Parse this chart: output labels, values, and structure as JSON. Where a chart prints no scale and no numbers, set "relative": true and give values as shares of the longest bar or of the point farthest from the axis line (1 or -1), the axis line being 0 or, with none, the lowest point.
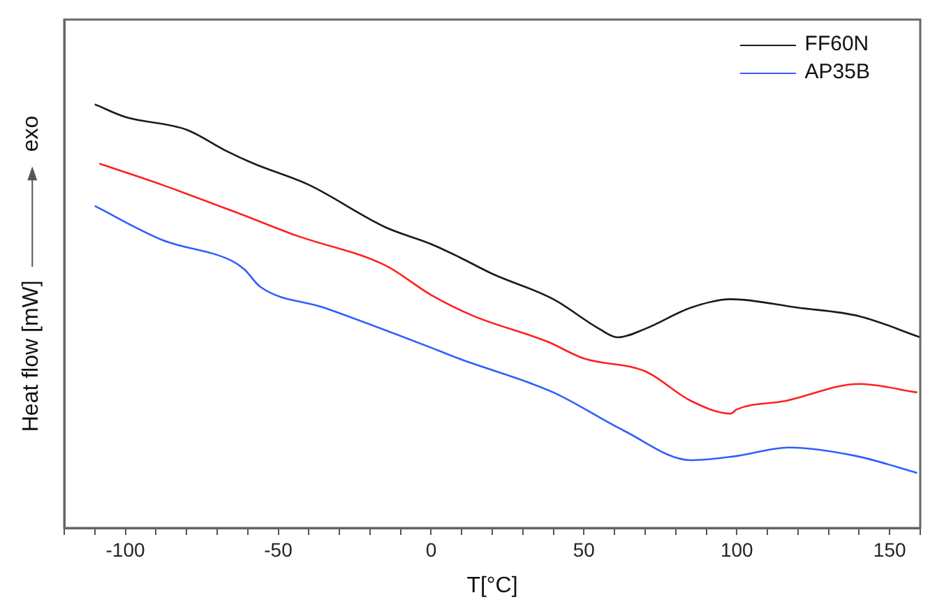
{
  "chart_data": {
    "type": "line",
    "xlabel": "T[°C]",
    "ylabel": "Heat flow [mW]",
    "annotations": [
      "exo"
    ],
    "relative": true,
    "xlim": [
      -120,
      160
    ],
    "xticks": [
      {
        "value": -120,
        "label": null
      },
      {
        "value": -110,
        "label": null
      },
      -100,
      {
        "value": -90,
        "label": null
      },
      {
        "value": -80,
        "label": null
      },
      {
        "value": -70,
        "label": null
      },
      {
        "value": -60,
        "label": null
      },
      -50,
      {
        "value": -40,
        "label": null
      },
      {
        "value": -30,
        "label": null
      },
      {
        "value": -20,
        "label": null
      },
      {
        "value": -10,
        "label": null
      },
      0,
      {
        "value": 10,
        "label": null
      },
      {
        "value": 20,
        "label": null
      },
      {
        "value": 30,
        "label": null
      },
      {
        "value": 40,
        "label": null
      },
      50,
      {
        "value": 60,
        "label": null
      },
      {
        "value": 70,
        "label": null
      },
      {
        "value": 80,
        "label": null
      },
      {
        "value": 90,
        "label": null
      },
      100,
      {
        "value": 110,
        "label": null
      },
      {
        "value": 120,
        "label": null
      },
      {
        "value": 130,
        "label": null
      },
      {
        "value": 140,
        "label": null
      },
      150,
      {
        "value": 160,
        "label": null
      }
    ],
    "grid": false,
    "legend": "top right",
    "marker": "none",
    "line_style": "solid",
    "series": [
      {
        "name": "FF60N",
        "color": "#1a1a1a",
        "x": [
          -110,
          -100,
          -80,
          -67,
          -58,
          -40,
          -15,
          0,
          9,
          20,
          40,
          55,
          61,
          70,
          85,
          98,
          120,
          140,
          160
        ],
        "values": [
          1.0,
          0.97,
          0.94,
          0.89,
          0.86,
          0.81,
          0.71,
          0.67,
          0.64,
          0.6,
          0.54,
          0.47,
          0.45,
          0.47,
          0.52,
          0.54,
          0.52,
          0.5,
          0.45
        ]
      },
      {
        "color": "#ff2020",
        "x": [
          -108.5,
          -88,
          -62,
          -44,
          -15,
          0,
          14,
          38,
          50,
          70,
          85,
          98,
          100,
          116,
          140,
          159
        ],
        "values": [
          0.86,
          0.81,
          0.74,
          0.69,
          0.62,
          0.55,
          0.5,
          0.44,
          0.4,
          0.37,
          0.3,
          0.27,
          0.28,
          0.3,
          0.34,
          0.32
        ]
      },
      {
        "name": "AP35B",
        "color": "#2f5fff",
        "x": [
          -110,
          -88,
          -65,
          -61,
          -56,
          -35,
          2,
          9,
          40,
          63,
          85,
          100,
          117,
          139,
          159
        ],
        "values": [
          0.76,
          0.68,
          0.63,
          0.61,
          0.57,
          0.52,
          0.42,
          0.4,
          0.32,
          0.23,
          0.16,
          0.17,
          0.19,
          0.17,
          0.13
        ]
      }
    ]
  }
}
